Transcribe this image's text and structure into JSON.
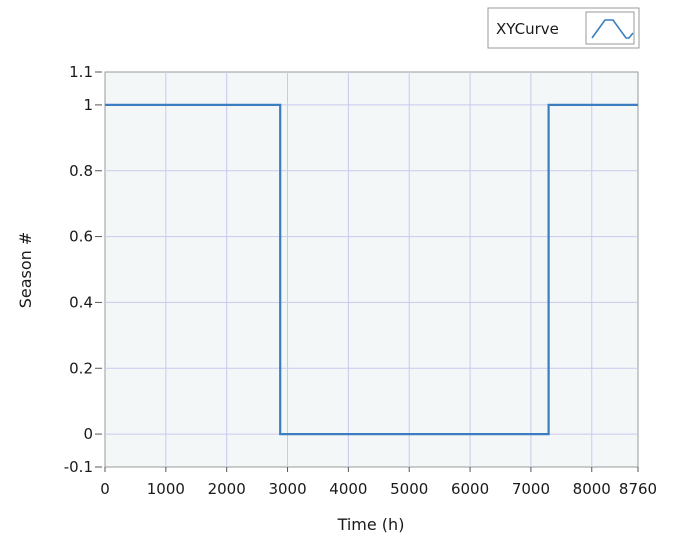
{
  "chart_data": {
    "type": "line",
    "title": "",
    "xlabel": "Time (h)",
    "ylabel": "Season #",
    "xlim": [
      0,
      8760
    ],
    "ylim": [
      -0.1,
      1.1
    ],
    "x_ticks": [
      0,
      1000,
      2000,
      3000,
      4000,
      5000,
      6000,
      7000,
      8000,
      8760
    ],
    "x_tick_labels": [
      "0",
      "1000",
      "2000",
      "3000",
      "4000",
      "5000",
      "6000",
      "7000",
      "8000",
      "8760"
    ],
    "y_ticks": [
      -0.1,
      0,
      0.2,
      0.4,
      0.6,
      0.8,
      1,
      1.1
    ],
    "y_tick_labels": [
      "-0.1",
      "0",
      "0.2",
      "0.4",
      "0.6",
      "0.8",
      "1",
      "1.1"
    ],
    "grid": true,
    "legend": {
      "placement": "top-right",
      "icon": "line-sample-icon"
    },
    "series": [
      {
        "name": "XYCurve",
        "color": "#3a7ebf",
        "x": [
          0,
          2880,
          2880,
          7290,
          7290,
          8760
        ],
        "y": [
          1,
          1,
          0,
          0,
          1,
          1
        ]
      }
    ]
  },
  "colors": {
    "plot_background": "#f4f7f8",
    "grid": "#c9c9ee",
    "axis": "#9a9a9a",
    "series": "#3a7ebf"
  }
}
